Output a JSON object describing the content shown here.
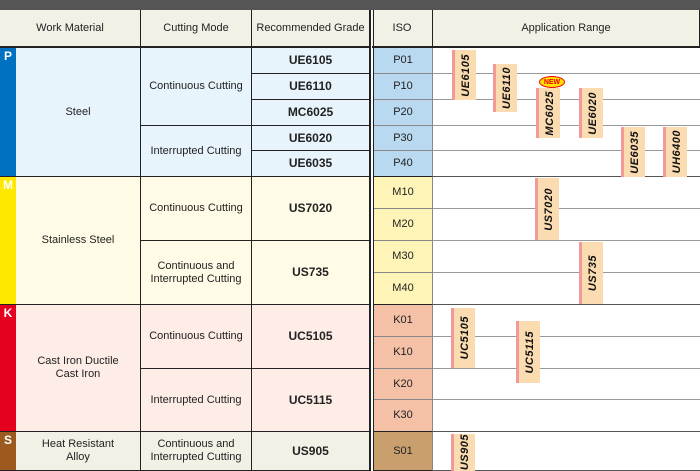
{
  "header": {
    "work_material": "Work Material",
    "cutting_mode": "Cutting Mode",
    "recommended_grade": "Recommended Grade",
    "iso": "ISO",
    "application_range": "Application Range"
  },
  "groups": [
    {
      "letter": "P",
      "material": "Steel",
      "color": "#0070c0",
      "bg": "#e8f4fc",
      "iso_bg": "#b9d9f1",
      "iso": [
        "P01",
        "P10",
        "P20",
        "P30",
        "P40"
      ],
      "modes": [
        {
          "label": "Continuous Cutting",
          "grades": [
            "UE6105",
            "UE6110",
            "MC6025"
          ]
        },
        {
          "label": "Interrupted Cutting",
          "grades": [
            "UE6020",
            "UE6035"
          ]
        }
      ]
    },
    {
      "letter": "M",
      "material": "Stainless Steel",
      "color": "#ffe800",
      "bg": "#fffbe6",
      "iso_bg": "#fff4b8",
      "iso": [
        "M10",
        "M20",
        "M30",
        "M40"
      ],
      "modes": [
        {
          "label": "Continuous Cutting",
          "grades": [
            "US7020"
          ]
        },
        {
          "label": "Continuous and Interrupted Cutting",
          "grades": [
            "US735"
          ]
        }
      ]
    },
    {
      "letter": "K",
      "material": "Cast Iron Ductile Cast Iron",
      "color": "#e60020",
      "bg": "#fdede6",
      "iso_bg": "#f4c0a6",
      "iso": [
        "K01",
        "K10",
        "K20",
        "K30"
      ],
      "modes": [
        {
          "label": "Continuous Cutting",
          "grades": [
            "UC5105"
          ]
        },
        {
          "label": "Interrupted Cutting",
          "grades": [
            "UC5115"
          ]
        }
      ]
    },
    {
      "letter": "S",
      "material": "Heat Resistant Alloy",
      "color": "#9c5a1e",
      "bg": "#f3f0e6",
      "iso_bg": "#c99f6d",
      "iso": [
        "S01"
      ],
      "modes": [
        {
          "label": "Continuous and Interrupted Cutting",
          "grades": [
            "US905"
          ]
        }
      ]
    }
  ],
  "application_labels": [
    "UE6105",
    "UE6110",
    "MC6025",
    "UE6020",
    "UE6035",
    "UH6400",
    "US7020",
    "US735",
    "UC5105",
    "UC5115",
    "US905"
  ],
  "new_badge": "NEW"
}
